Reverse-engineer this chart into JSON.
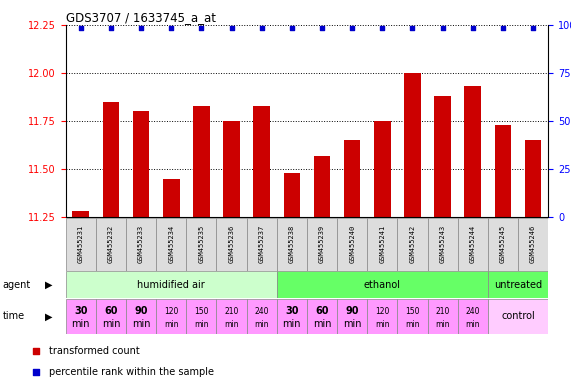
{
  "title": "GDS3707 / 1633745_a_at",
  "samples": [
    "GSM455231",
    "GSM455232",
    "GSM455233",
    "GSM455234",
    "GSM455235",
    "GSM455236",
    "GSM455237",
    "GSM455238",
    "GSM455239",
    "GSM455240",
    "GSM455241",
    "GSM455242",
    "GSM455243",
    "GSM455244",
    "GSM455245",
    "GSM455246"
  ],
  "bar_values": [
    11.28,
    11.85,
    11.8,
    11.45,
    11.83,
    11.75,
    11.83,
    11.48,
    11.57,
    11.65,
    11.75,
    12.0,
    11.88,
    11.93,
    11.73,
    11.65
  ],
  "bar_color": "#cc0000",
  "percentile_color": "#0000cc",
  "ylim_left": [
    11.25,
    12.25
  ],
  "ylim_right": [
    0,
    100
  ],
  "yticks_left": [
    11.25,
    11.5,
    11.75,
    12.0,
    12.25
  ],
  "yticks_right": [
    0,
    25,
    50,
    75,
    100
  ],
  "agent_groups": [
    {
      "label": "humidified air",
      "start": 0,
      "end": 7,
      "color": "#ccffcc"
    },
    {
      "label": "ethanol",
      "start": 7,
      "end": 14,
      "color": "#66ff66"
    },
    {
      "label": "untreated",
      "start": 14,
      "end": 16,
      "color": "#66ff66"
    }
  ],
  "time_labels_large": [
    "30",
    "60",
    "90",
    "30",
    "60",
    "90"
  ],
  "time_labels_small": [
    "120",
    "150",
    "210",
    "240",
    "120",
    "150",
    "210",
    "240"
  ],
  "time_cell_color": "#ff99ff",
  "control_label": "control",
  "control_color": "#ffccff",
  "sample_bg_color": "#dddddd",
  "legend_bar_label": "transformed count",
  "legend_pct_label": "percentile rank within the sample"
}
